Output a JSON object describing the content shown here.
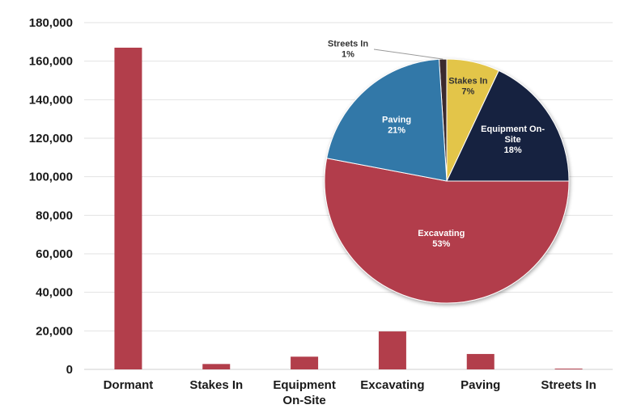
{
  "chart_data": [
    {
      "type": "bar",
      "categories": [
        "Dormant",
        "Stakes In",
        "Equipment On-Site",
        "Excavating",
        "Paving",
        "Streets In"
      ],
      "category_lines": [
        [
          "Dormant"
        ],
        [
          "Stakes In"
        ],
        [
          "Equipment",
          "On-Site"
        ],
        [
          "Excavating"
        ],
        [
          "Paving"
        ],
        [
          "Streets In"
        ]
      ],
      "values": [
        167000,
        2800,
        6600,
        19700,
        8000,
        400
      ],
      "ylim": [
        0,
        180000
      ],
      "yticks": [
        0,
        20000,
        40000,
        60000,
        80000,
        100000,
        120000,
        140000,
        160000,
        180000
      ],
      "ytick_labels": [
        "0",
        "20,000",
        "40,000",
        "60,000",
        "80,000",
        "100,000",
        "120,000",
        "140,000",
        "160,000",
        "180,000"
      ],
      "color": "#b23e4b",
      "grid": true,
      "title": "",
      "xlabel": "",
      "ylabel": ""
    },
    {
      "type": "pie",
      "slices": [
        {
          "label": "Streets In",
          "pct_label": "1%",
          "value": 1,
          "color": "#3b2a2e",
          "text_color": "#333333",
          "lines": [
            "Streets In"
          ]
        },
        {
          "label": "Stakes In",
          "pct_label": "7%",
          "value": 7,
          "color": "#e3c54a",
          "text_color": "#333333",
          "lines": [
            "Stakes In"
          ]
        },
        {
          "label": "Equipment On-Site",
          "pct_label": "18%",
          "value": 18,
          "color": "#162040",
          "text_color": "#ffffff",
          "lines": [
            "Equipment On-",
            "Site"
          ]
        },
        {
          "label": "Excavating",
          "pct_label": "53%",
          "value": 53,
          "color": "#b23e4b",
          "text_color": "#ffffff",
          "lines": [
            "Excavating"
          ]
        },
        {
          "label": "Paving",
          "pct_label": "21%",
          "value": 21,
          "color": "#3278a8",
          "text_color": "#ffffff",
          "lines": [
            "Paving"
          ]
        }
      ]
    }
  ]
}
